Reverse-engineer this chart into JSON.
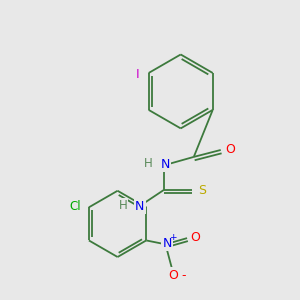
{
  "background_color": "#e8e8e8",
  "bond_color": "#3d7a3d",
  "atom_colors": {
    "I": "#cc00cc",
    "O": "#ff0000",
    "N": "#0000ee",
    "H": "#5a8a5a",
    "Cl": "#00aa00",
    "S": "#bbaa00",
    "C": "#3d7a3d"
  },
  "figsize": [
    3.0,
    3.0
  ],
  "dpi": 100
}
